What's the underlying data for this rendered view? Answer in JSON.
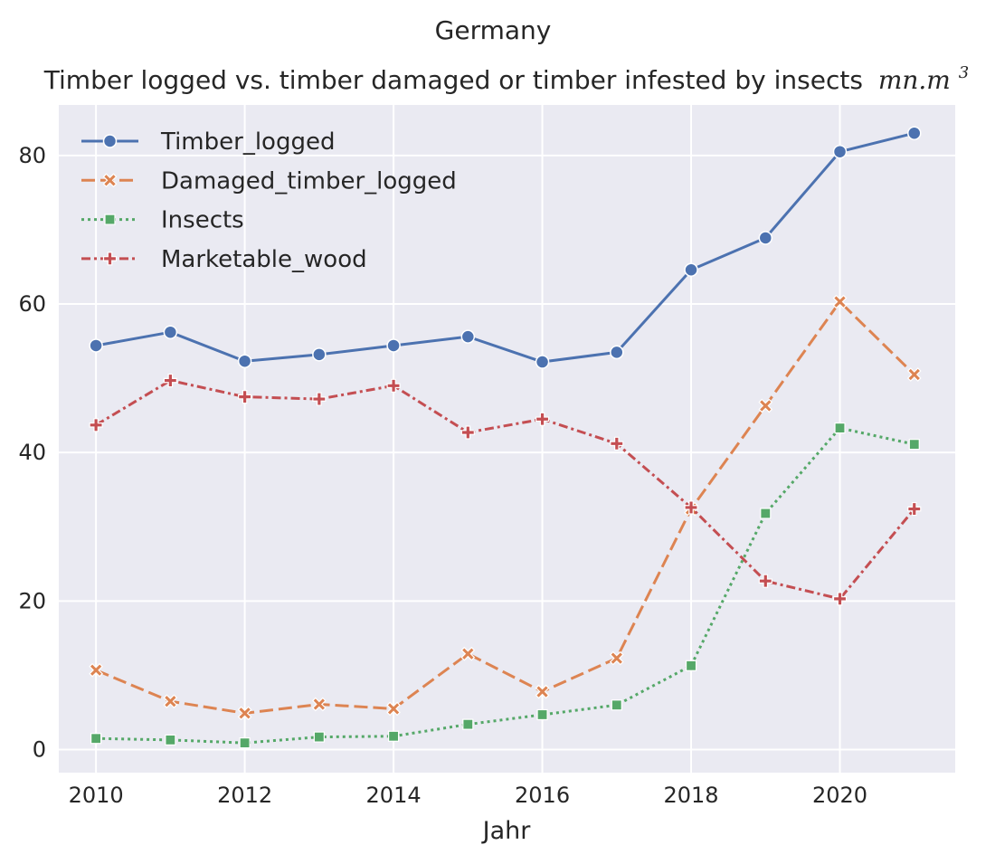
{
  "chart_data": {
    "type": "line",
    "suptitle": "Germany",
    "title": "Timber logged vs. timber damaged or timber infested by insects",
    "title_unit": "mn.m",
    "title_unit_exp": "3",
    "xlabel": "Jahr",
    "ylabel": "",
    "xlim": [
      2009.5,
      2021.55
    ],
    "ylim": [
      -3.1,
      86.8
    ],
    "xticks": [
      2010,
      2012,
      2014,
      2016,
      2018,
      2020
    ],
    "yticks": [
      0,
      20,
      40,
      60,
      80
    ],
    "grid": true,
    "legend_position": "top-left",
    "x": [
      2010,
      2011,
      2012,
      2013,
      2014,
      2015,
      2016,
      2017,
      2018,
      2019,
      2020,
      2021
    ],
    "series": [
      {
        "name": "Timber_logged",
        "color": "#4c72b0",
        "dash": "solid",
        "marker": "circle",
        "values": [
          54.4,
          56.2,
          52.3,
          53.2,
          54.4,
          55.6,
          52.2,
          53.5,
          64.6,
          68.9,
          80.5,
          83.0
        ]
      },
      {
        "name": "Damaged_timber_logged",
        "color": "#dd8452",
        "dash": "dashed",
        "marker": "x",
        "values": [
          10.7,
          6.5,
          4.9,
          6.1,
          5.5,
          12.9,
          7.8,
          12.3,
          32.4,
          46.3,
          60.3,
          50.5
        ]
      },
      {
        "name": "Insects",
        "color": "#55a868",
        "dash": "dotted",
        "marker": "square",
        "values": [
          1.5,
          1.3,
          0.9,
          1.7,
          1.8,
          3.4,
          4.7,
          6.0,
          11.3,
          31.8,
          43.3,
          41.1
        ]
      },
      {
        "name": "Marketable_wood",
        "color": "#c44e52",
        "dash": "dashdot",
        "marker": "plus",
        "values": [
          43.7,
          49.7,
          47.5,
          47.2,
          49.0,
          42.7,
          44.5,
          41.2,
          32.6,
          22.7,
          20.3,
          32.4
        ]
      }
    ]
  }
}
